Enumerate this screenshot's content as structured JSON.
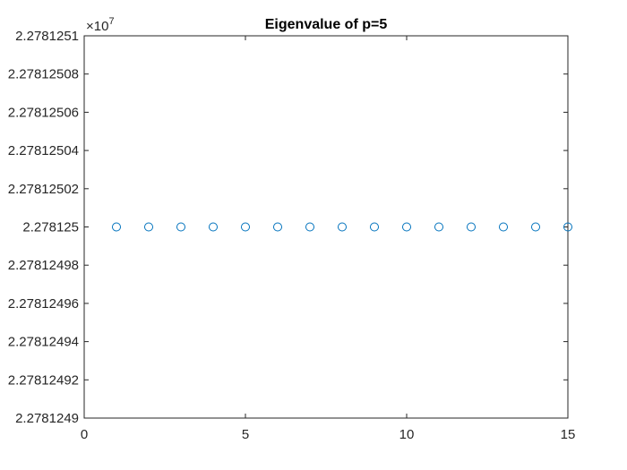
{
  "chart_data": {
    "type": "scatter",
    "title": "Eigenvalue of p=5",
    "xlabel": "",
    "ylabel": "",
    "x": [
      1,
      2,
      3,
      4,
      5,
      6,
      7,
      8,
      9,
      10,
      11,
      12,
      13,
      14,
      15
    ],
    "y": [
      22781250,
      22781250,
      22781250,
      22781250,
      22781250,
      22781250,
      22781250,
      22781250,
      22781250,
      22781250,
      22781250,
      22781250,
      22781250,
      22781250,
      22781250
    ],
    "xlim": [
      0,
      15
    ],
    "ylim": [
      22781249,
      22781251
    ],
    "x_ticks": [
      0,
      5,
      10,
      15
    ],
    "x_tick_labels": [
      "0",
      "5",
      "10",
      "15"
    ],
    "y_ticks": [
      22781249,
      22781249.2,
      22781249.4,
      22781249.6,
      22781249.8,
      22781250,
      22781250.2,
      22781250.4,
      22781250.6,
      22781250.8,
      22781251
    ],
    "y_tick_labels": [
      "2.2781249",
      "2.27812492",
      "2.27812494",
      "2.27812496",
      "2.27812498",
      "2.278125",
      "2.27812502",
      "2.27812504",
      "2.27812506",
      "2.27812508",
      "2.2781251"
    ],
    "y_exponent_label": "×10",
    "y_exponent_power": "7",
    "marker": "circle-open",
    "grid": false,
    "colors": {
      "marker": "#0072BD",
      "axis": "#262626"
    }
  }
}
